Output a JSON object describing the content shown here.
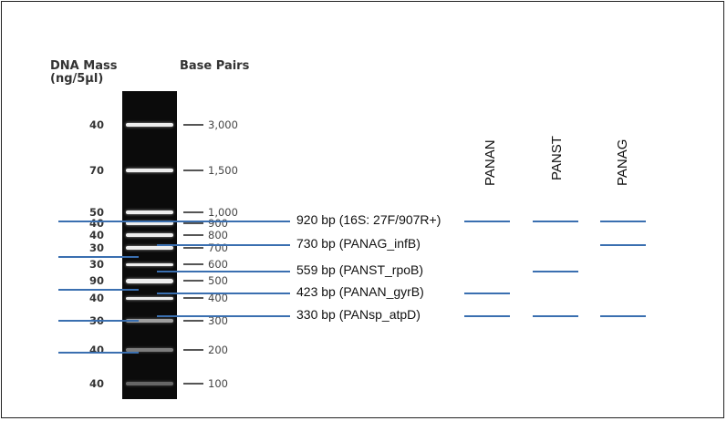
{
  "headers": {
    "dna_mass_line1": "DNA Mass",
    "dna_mass_line2": "(ng/5µl)",
    "base_pairs": "Base Pairs"
  },
  "ladder": [
    {
      "mass": "40",
      "bp": "3,000"
    },
    {
      "mass": "70",
      "bp": "1,500"
    },
    {
      "mass": "50",
      "bp": "1,000"
    },
    {
      "mass": "40",
      "bp": "900"
    },
    {
      "mass": "40",
      "bp": "800"
    },
    {
      "mass": "30",
      "bp": "700"
    },
    {
      "mass": "30",
      "bp": "600"
    },
    {
      "mass": "90",
      "bp": "500"
    },
    {
      "mass": "40",
      "bp": "400"
    },
    {
      "mass": "30",
      "bp": "300"
    },
    {
      "mass": "40",
      "bp": "200"
    },
    {
      "mass": "40",
      "bp": "100"
    }
  ],
  "lanes": [
    "PANAN",
    "PANST",
    "PANAG"
  ],
  "products": [
    {
      "label": "920 bp (16S: 27F/907R+)",
      "lanes": [
        "PANAN",
        "PANST",
        "PANAG"
      ]
    },
    {
      "label": "730 bp (PANAG_infB)",
      "lanes": [
        "PANAG"
      ]
    },
    {
      "label": "559 bp (PANST_rpoB)",
      "lanes": [
        "PANST"
      ]
    },
    {
      "label": "423 bp (PANAN_gyrB)",
      "lanes": [
        "PANAN"
      ]
    },
    {
      "label": "330 bp (PANsp_atpD)",
      "lanes": [
        "PANAN",
        "PANST",
        "PANAG"
      ]
    }
  ],
  "colors": {
    "marker_line": "#3a6fb0",
    "gel": "#0b0b0b",
    "band": "#eeeeee"
  }
}
